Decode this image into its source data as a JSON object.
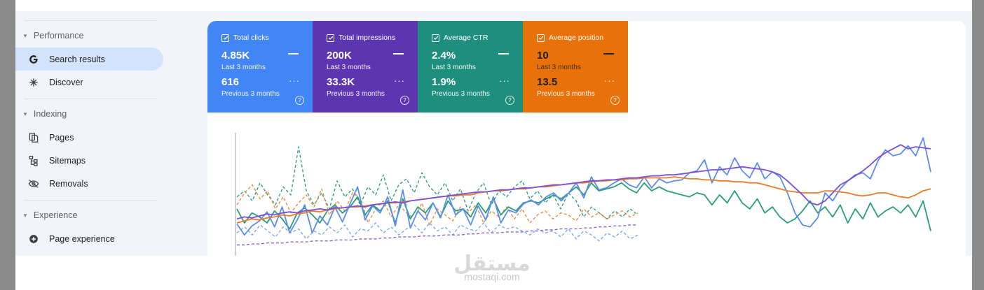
{
  "sidebar": {
    "sections": [
      {
        "label": "Performance",
        "items": [
          {
            "label": "Search results",
            "icon": "google-g-icon",
            "active": true
          },
          {
            "label": "Discover",
            "icon": "asterisk-icon",
            "active": false
          }
        ]
      },
      {
        "label": "Indexing",
        "items": [
          {
            "label": "Pages",
            "icon": "pages-icon",
            "active": false
          },
          {
            "label": "Sitemaps",
            "icon": "sitemap-icon",
            "active": false
          },
          {
            "label": "Removals",
            "icon": "eye-off-icon",
            "active": false
          }
        ]
      },
      {
        "label": "Experience",
        "items": [
          {
            "label": "Page experience",
            "icon": "plus-circle-icon",
            "active": false
          }
        ]
      }
    ]
  },
  "metrics": [
    {
      "title": "Total clicks",
      "value": "4.85K",
      "period": "Last 3 months",
      "prev_value": "616",
      "prev_period": "Previous 3 months",
      "color": "#4285f4"
    },
    {
      "title": "Total impressions",
      "value": "200K",
      "period": "Last 3 months",
      "prev_value": "33.3K",
      "prev_period": "Previous 3 months",
      "color": "#5e35b1"
    },
    {
      "title": "Average CTR",
      "value": "2.4%",
      "period": "Last 3 months",
      "prev_value": "1.9%",
      "prev_period": "Previous 3 months",
      "color": "#1e8e7e"
    },
    {
      "title": "Average position",
      "value": "10",
      "period": "Last 3 months",
      "prev_value": "13.5",
      "prev_period": "Previous 3 months",
      "color": "#e8710a"
    }
  ],
  "watermark": {
    "logo": "مستقل",
    "text": "mostaqi.com"
  },
  "chart_data": {
    "type": "line",
    "title": "",
    "xlabel": "",
    "ylabel": "",
    "grid": false,
    "series": [
      {
        "metric": "clicks",
        "period": "current",
        "color": "#5b8def",
        "style": "solid",
        "values": [
          29,
          18,
          27,
          32,
          41,
          26,
          46,
          20,
          33,
          48,
          20,
          37,
          28,
          46,
          31,
          49,
          66,
          33,
          47,
          40,
          56,
          27,
          63,
          25,
          42,
          33,
          50,
          35,
          58,
          38,
          44,
          28,
          47,
          33,
          56,
          30,
          43,
          40,
          49,
          53,
          48,
          56,
          60,
          52,
          60,
          70,
          55,
          76,
          63,
          65,
          70,
          74,
          68,
          65,
          76,
          65,
          74,
          70,
          72,
          73,
          80,
          82,
          93,
          70,
          86,
          78,
          95,
          82,
          75,
          90,
          74,
          81,
          76,
          60,
          40,
          28,
          26,
          35,
          60,
          52,
          64,
          72,
          78,
          80,
          74,
          92,
          103,
          97,
          99,
          107,
          97,
          115,
          81
        ]
      },
      {
        "metric": "impressions",
        "period": "current",
        "color": "#7b4fd6",
        "style": "solid",
        "values": [
          34,
          36,
          35,
          37,
          39,
          38,
          40,
          41,
          40,
          42,
          43,
          44,
          43,
          45,
          45,
          46,
          47,
          46,
          48,
          49,
          50,
          51,
          50,
          52,
          53,
          54,
          55,
          56,
          57,
          58,
          59,
          60,
          61,
          61,
          62,
          63,
          63,
          64,
          65,
          65,
          66,
          67,
          68,
          68,
          69,
          70,
          71,
          72,
          72,
          73,
          73,
          74,
          75,
          75,
          76,
          77,
          77,
          78,
          78,
          79,
          80,
          81,
          82,
          83,
          83,
          84,
          85,
          86,
          85,
          84,
          83,
          81,
          78,
          72,
          65,
          58,
          50,
          48,
          52,
          60,
          68,
          72,
          77,
          82,
          88,
          95,
          100,
          104,
          108,
          104,
          106,
          105,
          104
        ]
      },
      {
        "metric": "ctr",
        "period": "current",
        "color": "#2a9d7a",
        "style": "solid",
        "values": [
          44,
          30,
          40,
          36,
          30,
          42,
          34,
          24,
          40,
          45,
          38,
          30,
          42,
          48,
          40,
          46,
          56,
          38,
          48,
          42,
          52,
          30,
          54,
          34,
          46,
          40,
          50,
          36,
          52,
          42,
          44,
          36,
          50,
          40,
          54,
          38,
          46,
          42,
          50,
          52,
          50,
          54,
          58,
          54,
          60,
          66,
          58,
          70,
          62,
          64,
          66,
          70,
          64,
          60,
          70,
          62,
          66,
          62,
          60,
          58,
          56,
          60,
          58,
          48,
          58,
          50,
          62,
          50,
          44,
          54,
          40,
          46,
          36,
          30,
          34,
          42,
          52,
          40,
          46,
          36,
          48,
          30,
          44,
          34,
          50,
          36,
          42,
          46,
          40,
          48,
          36,
          52,
          22
        ]
      },
      {
        "metric": "position",
        "period": "current",
        "color": "#ea7d2c",
        "style": "solid",
        "values": [
          30,
          32,
          34,
          33,
          35,
          36,
          38,
          37,
          39,
          40,
          42,
          41,
          43,
          44,
          45,
          46,
          46,
          47,
          48,
          49,
          50,
          50,
          51,
          52,
          53,
          54,
          55,
          56,
          57,
          57,
          58,
          58,
          60,
          61,
          62,
          62,
          63,
          64,
          64,
          65,
          66,
          66,
          67,
          68,
          69,
          70,
          70,
          71,
          72,
          72,
          73,
          73,
          74,
          74,
          75,
          75,
          75,
          75,
          76,
          75,
          74,
          74,
          73,
          73,
          72,
          72,
          71,
          71,
          70,
          70,
          68,
          66,
          64,
          62,
          61,
          60,
          60,
          60,
          62,
          62,
          61,
          60,
          58,
          57,
          58,
          60,
          60,
          58,
          56,
          55,
          58,
          62,
          64
        ]
      },
      {
        "metric": "clicks",
        "period": "previous",
        "color": "#7ea7f3",
        "style": "dashed",
        "values": [
          20,
          26,
          18,
          28,
          22,
          16,
          26,
          20,
          24,
          14,
          22,
          18,
          26,
          20,
          28,
          16,
          24,
          22,
          30,
          20,
          26,
          18,
          24,
          28,
          20,
          30,
          22,
          26,
          18,
          28,
          24,
          22,
          30,
          20,
          28,
          24,
          26,
          22,
          18,
          24,
          20,
          22,
          16,
          24,
          14,
          22,
          18,
          12,
          20,
          16,
          22,
          14,
          18
        ]
      },
      {
        "metric": "impressions",
        "period": "previous",
        "color": "#8a63d2",
        "style": "dashed",
        "values": [
          8,
          8,
          9,
          9,
          10,
          10,
          10,
          11,
          11,
          11,
          12,
          12,
          12,
          13,
          13,
          13,
          14,
          14,
          14,
          15,
          15,
          16,
          16,
          16,
          17,
          17,
          17,
          18,
          18,
          18,
          19,
          19,
          20,
          20,
          20,
          21,
          21,
          21,
          22,
          22,
          23,
          23,
          24,
          24,
          24,
          25,
          25,
          26,
          26,
          27,
          27,
          28,
          28
        ]
      },
      {
        "metric": "ctr",
        "period": "previous",
        "color": "#2f9f86",
        "style": "dashed",
        "values": [
          56,
          62,
          52,
          70,
          58,
          48,
          66,
          58,
          106,
          62,
          48,
          60,
          44,
          72,
          56,
          64,
          48,
          66,
          58,
          78,
          52,
          68,
          74,
          60,
          80,
          66,
          58,
          70,
          52,
          64,
          42,
          60,
          70,
          48,
          62,
          56,
          66,
          72,
          54,
          62,
          50,
          58,
          44,
          60,
          52,
          36,
          46,
          40,
          34,
          42,
          36,
          44,
          38
        ]
      },
      {
        "metric": "position",
        "period": "previous",
        "color": "#ee8a42",
        "style": "dashed",
        "values": [
          48,
          60,
          68,
          54,
          62,
          44,
          56,
          40,
          50,
          58,
          46,
          64,
          38,
          52,
          42,
          60,
          56,
          30,
          44,
          52,
          36,
          48,
          40,
          34,
          50,
          28,
          44,
          38,
          32,
          46,
          40,
          48,
          30,
          42,
          36,
          46,
          34,
          44,
          30,
          38,
          42,
          34,
          40,
          38,
          32,
          44,
          36,
          40,
          34,
          38,
          42,
          36,
          40
        ]
      }
    ]
  }
}
